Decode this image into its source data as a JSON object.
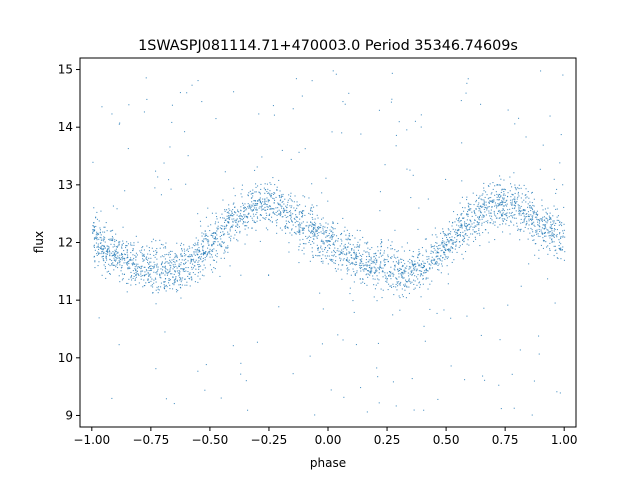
{
  "chart_data": {
    "type": "scatter",
    "title": "1SWASPJ081114.71+470003.0 Period 35346.74609s",
    "xlabel": "phase",
    "ylabel": "flux",
    "xlim": [
      -1.05,
      1.05
    ],
    "ylim": [
      8.8,
      15.2
    ],
    "xticks": [
      "−1.00",
      "−0.75",
      "−0.50",
      "−0.25",
      "0.00",
      "0.25",
      "0.50",
      "0.75",
      "1.00"
    ],
    "xtick_values": [
      -1.0,
      -0.75,
      -0.5,
      -0.25,
      0.0,
      0.25,
      0.5,
      0.75,
      1.0
    ],
    "yticks": [
      "9",
      "10",
      "11",
      "12",
      "13",
      "14",
      "15"
    ],
    "ytick_values": [
      9,
      10,
      11,
      12,
      13,
      14,
      15
    ],
    "grid": false,
    "point_color": "#1f77b4",
    "curve": {
      "description_values": "phase-folded light curve, two cycles over phase -1 to 1",
      "phase": [
        -1.0,
        -0.9,
        -0.8,
        -0.7,
        -0.6,
        -0.5,
        -0.4,
        -0.3,
        -0.25,
        -0.2,
        -0.1,
        0.0,
        0.1,
        0.2,
        0.3,
        0.4,
        0.5,
        0.6,
        0.7,
        0.75,
        0.8,
        0.9,
        1.0
      ],
      "flux": [
        12.05,
        11.8,
        11.62,
        11.52,
        11.6,
        11.95,
        12.4,
        12.65,
        12.68,
        12.6,
        12.3,
        12.0,
        11.75,
        11.6,
        11.52,
        11.6,
        11.95,
        12.4,
        12.65,
        12.68,
        12.6,
        12.3,
        12.05
      ]
    },
    "band_halfwidth": 0.45,
    "outlier_range": [
      9.0,
      15.0
    ]
  }
}
